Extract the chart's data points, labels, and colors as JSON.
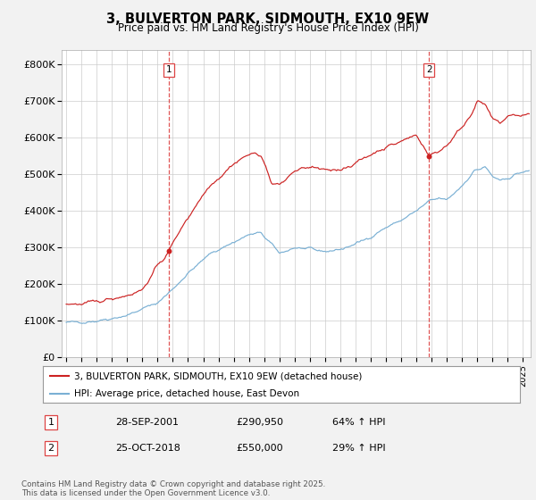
{
  "title": "3, BULVERTON PARK, SIDMOUTH, EX10 9EW",
  "subtitle": "Price paid vs. HM Land Registry's House Price Index (HPI)",
  "ylabel_ticks": [
    "£0",
    "£100K",
    "£200K",
    "£300K",
    "£400K",
    "£500K",
    "£600K",
    "£700K",
    "£800K"
  ],
  "ytick_values": [
    0,
    100000,
    200000,
    300000,
    400000,
    500000,
    600000,
    700000,
    800000
  ],
  "ylim": [
    0,
    840000
  ],
  "xlim_start": 1994.7,
  "xlim_end": 2025.5,
  "sale1_x": 2001.75,
  "sale1_y": 290950,
  "sale2_x": 2018.82,
  "sale2_y": 550000,
  "legend_line1": "3, BULVERTON PARK, SIDMOUTH, EX10 9EW (detached house)",
  "legend_line2": "HPI: Average price, detached house, East Devon",
  "footer": "Contains HM Land Registry data © Crown copyright and database right 2025.\nThis data is licensed under the Open Government Licence v3.0.",
  "bg_color": "#f2f2f2",
  "plot_bg_color": "#ffffff",
  "hpi_color": "#7ab0d4",
  "price_color": "#cc2222",
  "grid_color": "#cccccc",
  "vline_color": "#dd4444"
}
